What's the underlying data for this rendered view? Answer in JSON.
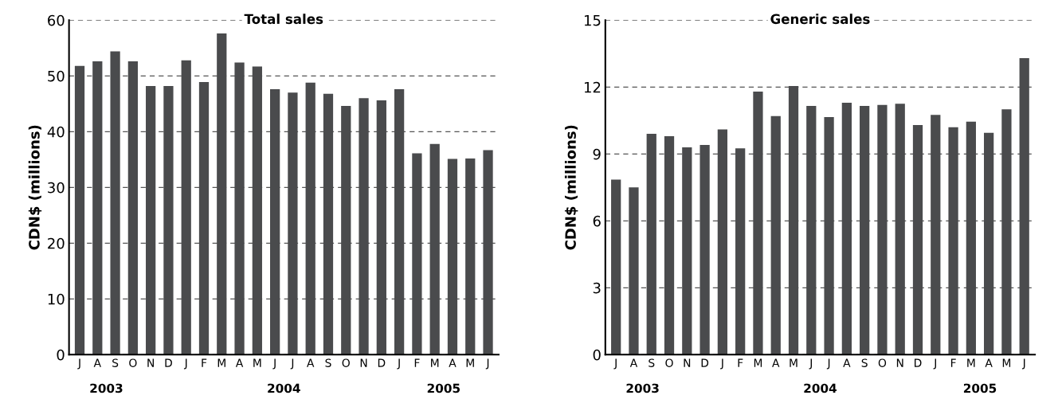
{
  "chart_data": [
    {
      "type": "bar",
      "title": "Total sales",
      "ylabel": "CDN$ (millions)",
      "categories": [
        "J",
        "A",
        "S",
        "O",
        "N",
        "D",
        "J",
        "F",
        "M",
        "A",
        "M",
        "J",
        "J",
        "A",
        "S",
        "O",
        "N",
        "D",
        "J",
        "F",
        "M",
        "A",
        "M",
        "J"
      ],
      "values": [
        51.8,
        52.6,
        54.4,
        52.6,
        48.2,
        48.2,
        52.8,
        48.9,
        57.6,
        52.4,
        51.7,
        47.6,
        47.0,
        48.8,
        46.8,
        44.6,
        46.0,
        45.6,
        47.6,
        36.1,
        37.8,
        35.1,
        35.2,
        36.7
      ],
      "color": "#4a4b4d",
      "ylim": [
        0,
        60
      ],
      "yticks": [
        0,
        10,
        20,
        30,
        40,
        50,
        60
      ],
      "grid": "y",
      "annotations": [
        "2003",
        "2004",
        "2005"
      ]
    },
    {
      "type": "bar",
      "title": "Generic sales",
      "ylabel": "CDN$ (millions)",
      "categories": [
        "J",
        "A",
        "S",
        "O",
        "N",
        "D",
        "J",
        "F",
        "M",
        "A",
        "M",
        "J",
        "J",
        "A",
        "S",
        "O",
        "N",
        "D",
        "J",
        "F",
        "M",
        "A",
        "M",
        "J"
      ],
      "values": [
        7.85,
        7.5,
        9.9,
        9.8,
        9.3,
        9.4,
        10.1,
        9.25,
        11.8,
        10.7,
        12.05,
        11.15,
        10.65,
        11.3,
        11.15,
        11.2,
        11.25,
        10.3,
        10.75,
        10.2,
        10.45,
        9.95,
        11.0,
        13.3
      ],
      "color": "#4a4b4d",
      "ylim": [
        0,
        15
      ],
      "yticks": [
        0,
        3,
        6,
        9,
        12,
        15
      ],
      "grid": "y",
      "annotations": [
        "2003",
        "2004",
        "2005"
      ]
    }
  ]
}
